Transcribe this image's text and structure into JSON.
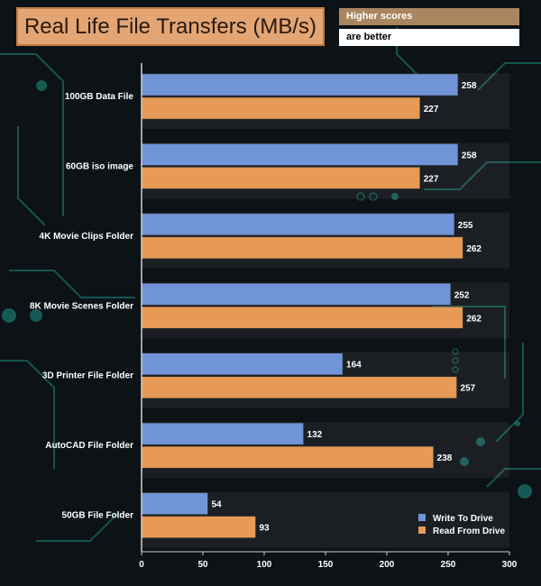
{
  "chart_data": {
    "type": "bar",
    "orientation": "horizontal",
    "title": "Real Life File Transfers (MB/s)",
    "note_line1": "Higher scores",
    "note_line2": "are better",
    "categories": [
      "100GB Data File",
      "60GB iso image",
      "4K Movie Clips Folder",
      "8K Movie Scenes Folder",
      "3D Printer File Folder",
      "AutoCAD File Folder",
      "50GB File Folder"
    ],
    "series": [
      {
        "name": "Write To  Drive",
        "color": "#7194d8",
        "values": [
          258,
          258,
          255,
          252,
          164,
          132,
          54
        ]
      },
      {
        "name": "Read From  Drive",
        "color": "#e69a55",
        "values": [
          227,
          227,
          262,
          262,
          257,
          238,
          93
        ]
      }
    ],
    "xlim": [
      0,
      300
    ],
    "xticks": [
      0,
      50,
      100,
      150,
      200,
      250,
      300
    ],
    "legend_position": "bottom-right"
  }
}
